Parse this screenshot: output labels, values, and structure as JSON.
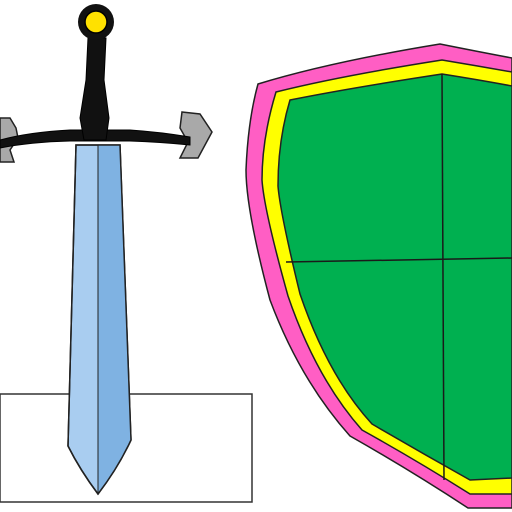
{
  "scene": {
    "description_items": [
      "sword",
      "shield",
      "pedestal"
    ],
    "colors": {
      "background": "#ffffff",
      "outline": "#000000",
      "pommel": "#ffe100",
      "grip": "#000000",
      "crossguard": "#1a1a1a",
      "crossguard_tips": "#a9a9a9",
      "blade_light": "#a9cdf0",
      "blade_dark": "#7fb2e2",
      "shield_outer": "#ff5ec4",
      "shield_middle": "#ffff00",
      "shield_field": "#00b050",
      "pedestal": "#ffffff"
    },
    "icons": {
      "sword": "sword-icon",
      "shield": "shield-icon"
    }
  }
}
